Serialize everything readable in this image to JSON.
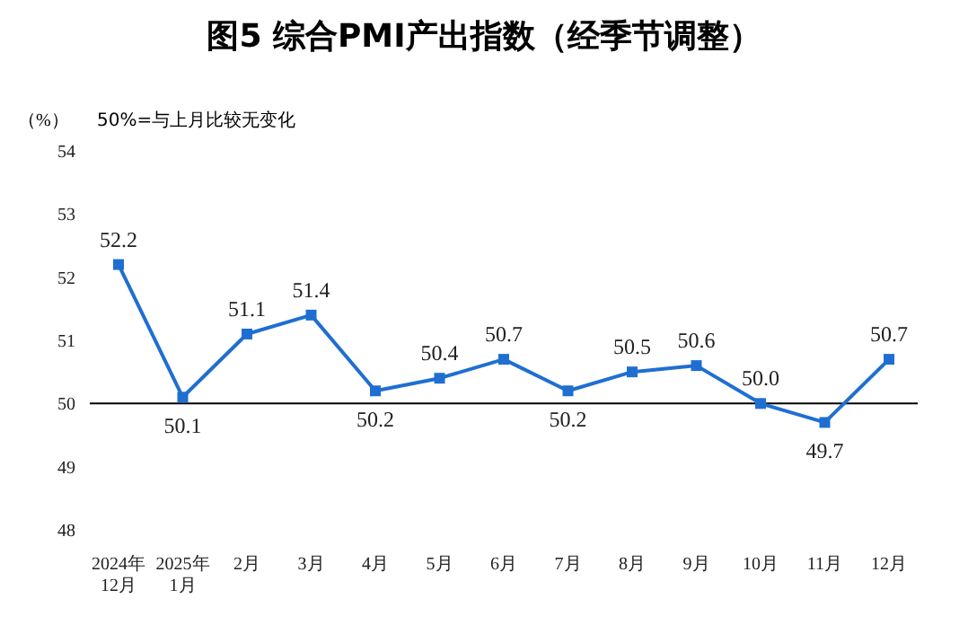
{
  "chart_data": {
    "type": "line",
    "title": "图5  综合PMI产出指数（经季节调整）",
    "ylabel": "（%）",
    "annotations": [
      "50%=与上月比较无变化"
    ],
    "categories": [
      "2024年\n12月",
      "2025年\n1月",
      "2月",
      "3月",
      "4月",
      "5月",
      "6月",
      "7月",
      "8月",
      "9月",
      "10月",
      "11月",
      "12月"
    ],
    "series": [
      {
        "color": "#1f6fd1",
        "values": [
          52.2,
          50.1,
          51.1,
          51.4,
          50.2,
          50.4,
          50.7,
          50.2,
          50.5,
          50.6,
          50.0,
          49.7,
          50.7
        ],
        "value_labels": [
          "52.2",
          "50.1",
          "51.1",
          "51.4",
          "50.2",
          "50.4",
          "50.7",
          "50.2",
          "50.5",
          "50.6",
          "50.0",
          "49.7",
          "50.7"
        ]
      }
    ],
    "ylim": [
      48,
      54
    ],
    "yticks": [
      48,
      49,
      50,
      51,
      52,
      53,
      54
    ],
    "ref_lines": [
      {
        "axis": "y",
        "value": 50,
        "color": "#000000"
      }
    ],
    "marker": "square",
    "line_style": "solid",
    "grid": false
  }
}
